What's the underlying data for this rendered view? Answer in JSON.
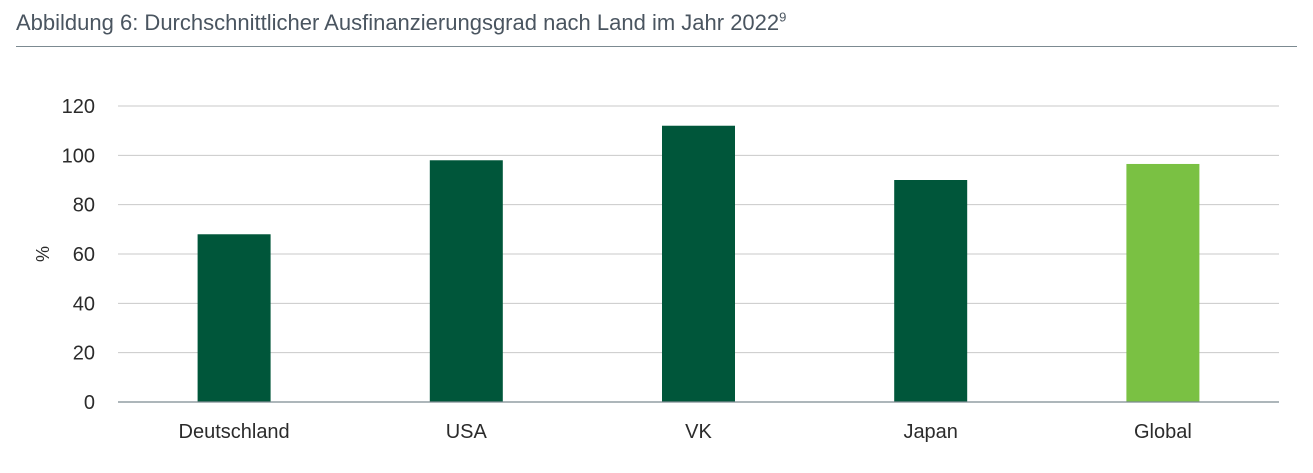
{
  "chart_data": {
    "type": "bar",
    "title": "Abbildung 6: Durchschnittlicher Ausfinanzierungsgrad nach Land im Jahr 2022",
    "title_footnote": "9",
    "ylabel": "%",
    "xlabel": "",
    "ylim": [
      0,
      120
    ],
    "yticks": [
      "0",
      "20",
      "40",
      "60",
      "80",
      "100",
      "120"
    ],
    "grid": true,
    "categories": [
      "Deutschland",
      "USA",
      "VK",
      "Japan",
      "Global"
    ],
    "values": [
      68,
      98,
      112,
      90,
      96.5
    ],
    "bar_colors": [
      "#00563a",
      "#00563a",
      "#00563a",
      "#00563a",
      "#7ac143"
    ]
  },
  "colors": {
    "gridline": "#c9c9c9",
    "axis": "#7c8a91",
    "title_text": "#4a5560"
  }
}
